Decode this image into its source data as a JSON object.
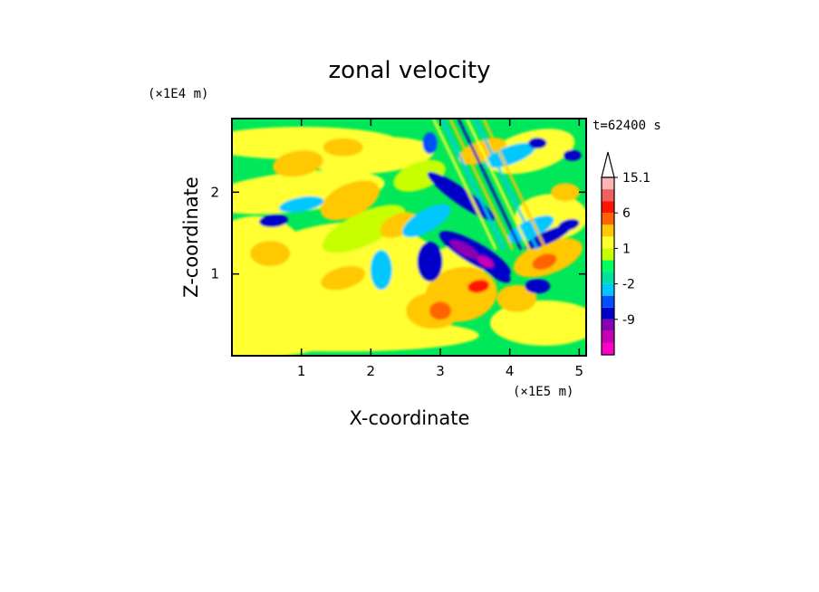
{
  "chart_data": {
    "type": "heatmap",
    "title": "zonal velocity",
    "xlabel": "X-coordinate",
    "ylabel": "Z-coordinate",
    "x_unit": "(×1E5 m)",
    "y_unit": "(×1E4 m)",
    "time_label": "t=62400 s",
    "xlim": [
      0,
      5.1
    ],
    "ylim": [
      0,
      2.9
    ],
    "x_ticks": [
      1,
      2,
      3,
      4,
      5
    ],
    "y_ticks": [
      1,
      2
    ],
    "colorbar": {
      "levels": [
        -15,
        -12,
        -9,
        -6,
        -3,
        -2,
        -1,
        0,
        1,
        2,
        3,
        6,
        9,
        12,
        15.1
      ],
      "labels": [
        15.1,
        6,
        1,
        -2,
        -9
      ],
      "colors": [
        "#ff00c8",
        "#c800b4",
        "#8c00b4",
        "#0000c8",
        "#0050ff",
        "#00c8ff",
        "#00e0a0",
        "#00ff60",
        "#c8ff00",
        "#ffff30",
        "#ffc800",
        "#ff6400",
        "#ff1400",
        "#f06060",
        "#ffb4b4"
      ]
    },
    "colors": {
      "background_field": "#00e85a"
    }
  }
}
